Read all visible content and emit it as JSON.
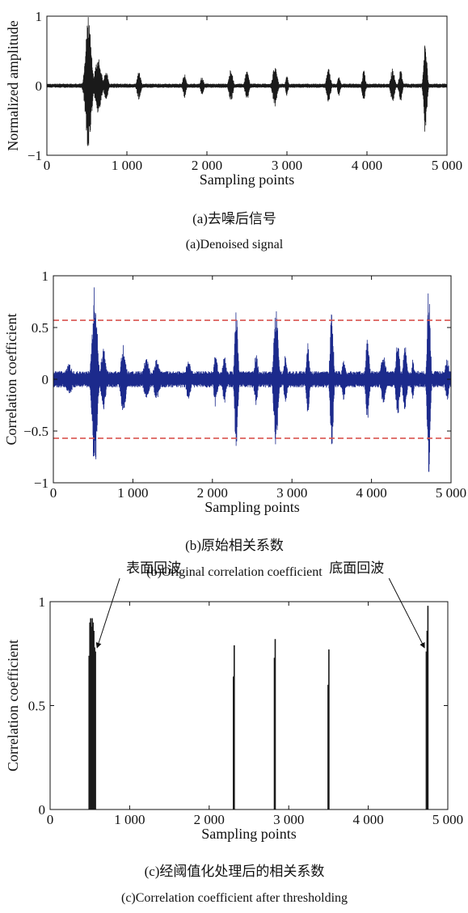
{
  "chart_data": [
    {
      "type": "line",
      "xlabel": "Sampling points",
      "ylabel": "Normalized amplitude",
      "xlim": [
        0,
        5000
      ],
      "ylim": [
        -1,
        1
      ],
      "x_ticks": [
        0,
        1000,
        2000,
        3000,
        4000,
        5000
      ],
      "x_tick_labels": [
        "0",
        "1 000",
        "2 000",
        "3 000",
        "4 000",
        "5 000"
      ],
      "y_ticks": [
        -1,
        0,
        1
      ],
      "y_tick_labels": [
        "−1",
        "0",
        "1"
      ],
      "series_color": "#1a1a1a",
      "noise_amplitude": 0.03,
      "bursts": [
        {
          "center": 520,
          "halfwidth": 45,
          "amplitude": 1.0
        },
        {
          "center": 640,
          "halfwidth": 50,
          "amplitude": 0.4
        },
        {
          "center": 740,
          "halfwidth": 30,
          "amplitude": 0.22
        },
        {
          "center": 1150,
          "halfwidth": 30,
          "amplitude": 0.2
        },
        {
          "center": 1720,
          "halfwidth": 25,
          "amplitude": 0.18
        },
        {
          "center": 1940,
          "halfwidth": 25,
          "amplitude": 0.14
        },
        {
          "center": 2300,
          "halfwidth": 30,
          "amplitude": 0.24
        },
        {
          "center": 2500,
          "halfwidth": 30,
          "amplitude": 0.22
        },
        {
          "center": 2850,
          "halfwidth": 35,
          "amplitude": 0.3
        },
        {
          "center": 3000,
          "halfwidth": 20,
          "amplitude": 0.16
        },
        {
          "center": 3520,
          "halfwidth": 30,
          "amplitude": 0.26
        },
        {
          "center": 3650,
          "halfwidth": 20,
          "amplitude": 0.16
        },
        {
          "center": 3960,
          "halfwidth": 25,
          "amplitude": 0.22
        },
        {
          "center": 4320,
          "halfwidth": 30,
          "amplitude": 0.26
        },
        {
          "center": 4420,
          "halfwidth": 25,
          "amplitude": 0.24
        },
        {
          "center": 4730,
          "halfwidth": 25,
          "amplitude": 0.74
        }
      ],
      "caption_cn": "(a)去噪后信号",
      "caption_en": "(a)Denoised signal"
    },
    {
      "type": "line",
      "xlabel": "Sampling points",
      "ylabel": "Correlation coefficient",
      "xlim": [
        0,
        5000
      ],
      "ylim": [
        -1,
        1
      ],
      "x_ticks": [
        0,
        1000,
        2000,
        3000,
        4000,
        5000
      ],
      "x_tick_labels": [
        "0",
        "1 000",
        "2 000",
        "3 000",
        "4 000",
        "5 000"
      ],
      "y_ticks": [
        -1,
        -0.5,
        0,
        0.5,
        1
      ],
      "y_tick_labels": [
        "−1",
        "−0.5",
        "0",
        "0.5",
        "1"
      ],
      "series_color": "#1c2a8c",
      "threshold": 0.57,
      "threshold_color": "#d9534f",
      "noise_amplitude": 0.08,
      "bursts": [
        {
          "center": 200,
          "halfwidth": 60,
          "amplitude": 0.15
        },
        {
          "center": 520,
          "halfwidth": 40,
          "amplitude": 0.92
        },
        {
          "center": 630,
          "halfwidth": 40,
          "amplitude": 0.3
        },
        {
          "center": 880,
          "halfwidth": 40,
          "amplitude": 0.35
        },
        {
          "center": 1170,
          "halfwidth": 50,
          "amplitude": 0.2
        },
        {
          "center": 1300,
          "halfwidth": 50,
          "amplitude": 0.2
        },
        {
          "center": 1700,
          "halfwidth": 40,
          "amplitude": 0.2
        },
        {
          "center": 2040,
          "halfwidth": 30,
          "amplitude": 0.27
        },
        {
          "center": 2150,
          "halfwidth": 30,
          "amplitude": 0.24
        },
        {
          "center": 2300,
          "halfwidth": 25,
          "amplitude": 0.73
        },
        {
          "center": 2550,
          "halfwidth": 30,
          "amplitude": 0.25
        },
        {
          "center": 2800,
          "halfwidth": 35,
          "amplitude": 0.72
        },
        {
          "center": 2920,
          "halfwidth": 25,
          "amplitude": 0.25
        },
        {
          "center": 3200,
          "halfwidth": 25,
          "amplitude": 0.35
        },
        {
          "center": 3500,
          "halfwidth": 25,
          "amplitude": 0.74
        },
        {
          "center": 3650,
          "halfwidth": 30,
          "amplitude": 0.2
        },
        {
          "center": 3950,
          "halfwidth": 30,
          "amplitude": 0.39
        },
        {
          "center": 4150,
          "halfwidth": 40,
          "amplitude": 0.25
        },
        {
          "center": 4330,
          "halfwidth": 30,
          "amplitude": 0.38
        },
        {
          "center": 4420,
          "halfwidth": 30,
          "amplitude": 0.34
        },
        {
          "center": 4520,
          "halfwidth": 20,
          "amplitude": 0.21
        },
        {
          "center": 4720,
          "halfwidth": 25,
          "amplitude": 0.93
        },
        {
          "center": 4950,
          "halfwidth": 30,
          "amplitude": 0.22
        }
      ],
      "caption_cn": "(b)原始相关系数",
      "caption_en": "(b)Original correlation coefficient"
    },
    {
      "type": "bar",
      "xlabel": "Sampling points",
      "ylabel": "Correlation coefficient",
      "xlim": [
        0,
        5000
      ],
      "ylim": [
        0,
        1
      ],
      "x_ticks": [
        0,
        1000,
        2000,
        3000,
        4000,
        5000
      ],
      "x_tick_labels": [
        "0",
        "1 000",
        "2 000",
        "3 000",
        "4 000",
        "5 000"
      ],
      "y_ticks": [
        0,
        0.5,
        1
      ],
      "y_tick_labels": [
        "0",
        "0.5",
        "1"
      ],
      "series_color": "#1a1a1a",
      "peaks": [
        {
          "x": 490,
          "value": 0.74
        },
        {
          "x": 500,
          "value": 0.9
        },
        {
          "x": 510,
          "value": 0.92
        },
        {
          "x": 520,
          "value": 0.88
        },
        {
          "x": 530,
          "value": 0.92
        },
        {
          "x": 540,
          "value": 0.9
        },
        {
          "x": 550,
          "value": 0.86
        },
        {
          "x": 560,
          "value": 0.78
        },
        {
          "x": 570,
          "value": 0.76
        },
        {
          "x": 2305,
          "value": 0.64
        },
        {
          "x": 2315,
          "value": 0.79
        },
        {
          "x": 2820,
          "value": 0.73
        },
        {
          "x": 2830,
          "value": 0.82
        },
        {
          "x": 3495,
          "value": 0.6
        },
        {
          "x": 3505,
          "value": 0.77
        },
        {
          "x": 4730,
          "value": 0.76
        },
        {
          "x": 4740,
          "value": 0.86
        },
        {
          "x": 4750,
          "value": 0.98
        }
      ],
      "annotations": [
        {
          "text": "表面回波",
          "target": {
            "x": 570,
            "y": 0.77
          }
        },
        {
          "text": "底面回波",
          "target": {
            "x": 4728,
            "y": 0.77
          }
        }
      ],
      "caption_cn": "(c)经阈值化处理后的相关系数",
      "caption_en": "(c)Correlation coefficient after thresholding"
    }
  ]
}
